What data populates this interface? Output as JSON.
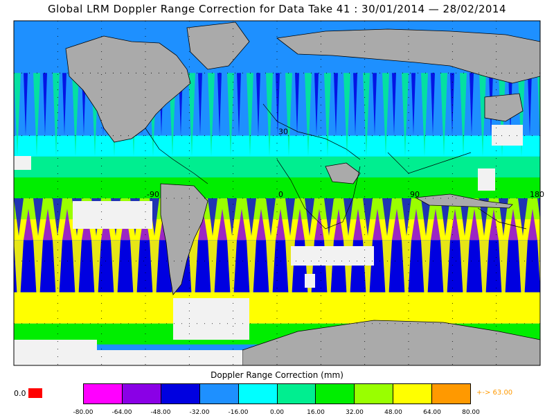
{
  "title": "Global LRM Doppler Range Correction for Data Take 41 : 30/01/2014 — 28/02/2014",
  "colorbar": {
    "label": "Doppler Range Correction (mm)",
    "ticks": [
      "-80.00",
      "-64.00",
      "-48.00",
      "-32.00",
      "-16.00",
      "0.00",
      "16.00",
      "32.00",
      "48.00",
      "64.00",
      "80.00"
    ],
    "colors": [
      "#ff00ff",
      "#8a00e6",
      "#0000e0",
      "#1e90ff",
      "#00ffff",
      "#00ee90",
      "#00ee00",
      "#99ff00",
      "#ffff00",
      "#ff9900"
    ],
    "zero_label": "0.0",
    "zero_color": "#ff0000",
    "over_label": "+-> 63.00",
    "over_color": "#ff9900"
  },
  "map": {
    "lon_labels": [
      {
        "text": "-90",
        "lon": -90,
        "lat": 0
      },
      {
        "text": "0",
        "lon": 0,
        "lat": 0
      },
      {
        "text": "90",
        "lon": 90,
        "lat": 0
      },
      {
        "text": "180",
        "lon": 180,
        "lat": 0
      },
      {
        "text": "30",
        "lon": 0,
        "lat": 30
      }
    ],
    "ocean_color": "#1e90ff",
    "land_color": "#aaaaaa",
    "nodata_color": "#f2f2f2"
  }
}
